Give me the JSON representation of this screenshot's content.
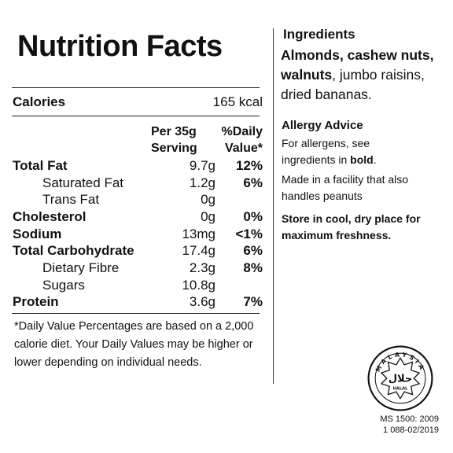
{
  "title": "Nutrition Facts",
  "calories": {
    "label": "Calories",
    "value": "165 kcal"
  },
  "columns": {
    "per_line1": "Per 35g",
    "per_line2": "Serving",
    "dv_line1": "%Daily",
    "dv_line2": "Value*"
  },
  "rows": [
    {
      "label": "Total Fat",
      "amount": "9.7g",
      "dv": "12%"
    },
    {
      "label": "Saturated Fat",
      "amount": "1.2g",
      "dv": "6%"
    },
    {
      "label": "Trans Fat",
      "amount": "0g",
      "dv": ""
    },
    {
      "label": "Cholesterol",
      "amount": "0g",
      "dv": "0%"
    },
    {
      "label": "Sodium",
      "amount": "13mg",
      "dv": "<1%"
    },
    {
      "label": "Total Carbohydrate",
      "amount": "17.4g",
      "dv": "6%"
    },
    {
      "label": "Dietary Fibre",
      "amount": "2.3g",
      "dv": "8%"
    },
    {
      "label": "Sugars",
      "amount": "10.8g",
      "dv": ""
    },
    {
      "label": "Protein",
      "amount": "3.6g",
      "dv": "7%"
    }
  ],
  "footnote": "*Daily Value Percentages are based on a 2,000 calorie diet. Your Daily Values may be higher or lower depending on individual needs.",
  "ingredients": {
    "title": "Ingredients",
    "bold1": "Almonds, cashew nuts,",
    "bold2": "walnuts",
    "rest": ", jumbo raisins, dried bananas."
  },
  "allergy": {
    "title": "Allergy Advice",
    "line1": "For allergens, see",
    "line2_pre": "ingredients in ",
    "line2_bold": "bold",
    "line2_post": ".",
    "facility": "Made in a facility that also handles peanuts",
    "storage": "Store in cool, dry place for maximum freshness."
  },
  "halal": {
    "word": "حلال",
    "latin": "HALAL",
    "arc_text": "MALAYSIA",
    "cert_line1": "MS 1500: 2009",
    "cert_line2": "1 088-02/2019"
  }
}
